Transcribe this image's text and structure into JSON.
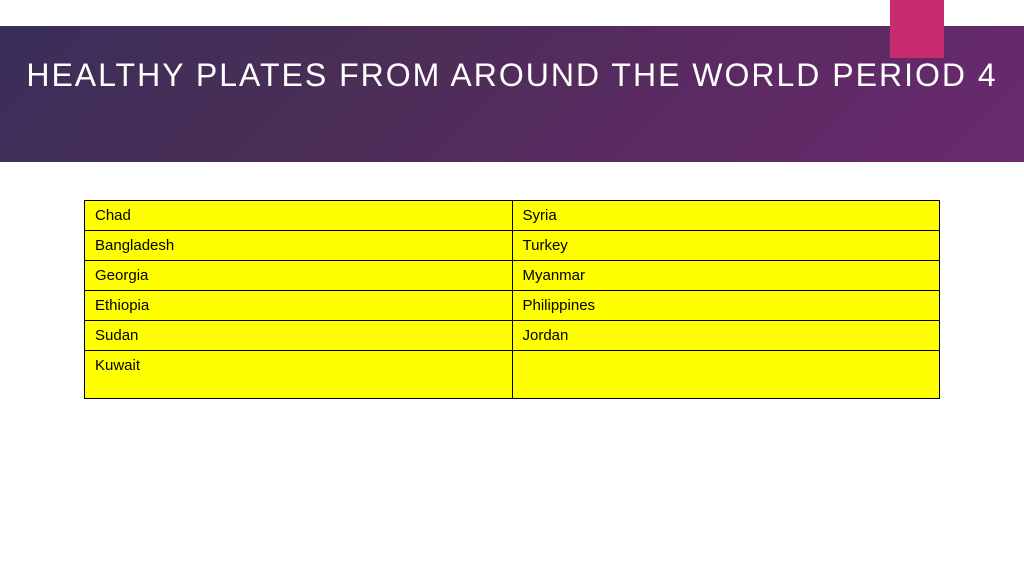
{
  "slide": {
    "title": "HEALTHY PLATES FROM AROUND THE WORLD PERIOD 4",
    "title_color": "#ffffff",
    "title_fontsize": 32,
    "title_fontweight": 300,
    "title_letterspacing": 2,
    "header_gradient": [
      "#3a2e5a",
      "#4a2e56",
      "#5a2a62",
      "#6a2a6e"
    ],
    "accent_color": "#c72a6e",
    "background_color": "#ffffff"
  },
  "table": {
    "type": "table",
    "columns": 2,
    "cell_background": "#ffff00",
    "cell_border_color": "#000000",
    "cell_text_color": "#000000",
    "cell_fontsize": 15,
    "column_widths_pct": [
      50,
      50
    ],
    "rows": [
      {
        "c0": "Chad",
        "c1": "Syria"
      },
      {
        "c0": "Bangladesh",
        "c1": "Turkey"
      },
      {
        "c0": "Georgia",
        "c1": "Myanmar"
      },
      {
        "c0": "Ethiopia",
        "c1": "Philippines"
      },
      {
        "c0": "Sudan",
        "c1": "Jordan"
      },
      {
        "c0": "Kuwait",
        "c1": ""
      }
    ]
  }
}
